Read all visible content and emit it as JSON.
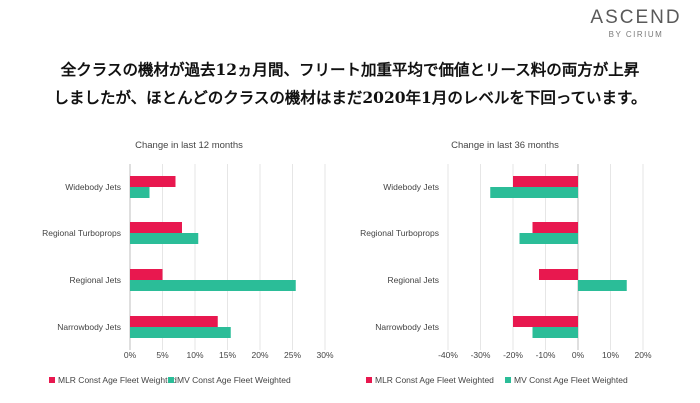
{
  "brand": {
    "name": "ASCEND",
    "sub": "BY CIRIUM"
  },
  "headline": {
    "line1": "全クラスの機材が過去12ヵ月間、フリート加重平均で価値とリース料の両方が上昇",
    "line2": "しましたが、ほとんどのクラスの機材はまだ2020年1月のレベルを下回っています。"
  },
  "colors": {
    "mlr": "#e8184f",
    "mv": "#2bbd98"
  },
  "chart_data": [
    {
      "type": "bar",
      "orientation": "horizontal",
      "title": "Change in last 12 months",
      "categories": [
        "Widebody Jets",
        "Regional Turboprops",
        "Regional Jets",
        "Narrowbody Jets"
      ],
      "series": [
        {
          "name": "MLR Const Age Fleet Weighted",
          "values": [
            7,
            8,
            5,
            13.5
          ]
        },
        {
          "name": "MV Const Age Fleet Weighted",
          "values": [
            3,
            10.5,
            25.5,
            15.5
          ]
        }
      ],
      "xlim": [
        0,
        30
      ],
      "xticks": [
        0,
        5,
        10,
        15,
        20,
        25,
        30
      ],
      "tick_format": "percent",
      "grid": true,
      "legend_position": "bottom"
    },
    {
      "type": "bar",
      "orientation": "horizontal",
      "title": "Change in last 36 months",
      "categories": [
        "Widebody Jets",
        "Regional Turboprops",
        "Regional Jets",
        "Narrowbody Jets"
      ],
      "series": [
        {
          "name": "MLR Const Age Fleet Weighted",
          "values": [
            -20,
            -14,
            -12,
            -20
          ]
        },
        {
          "name": "MV Const Age Fleet Weighted",
          "values": [
            -27,
            -18,
            15,
            -14
          ]
        }
      ],
      "xlim": [
        -40,
        20
      ],
      "xticks": [
        -40,
        -30,
        -20,
        -10,
        0,
        10,
        20
      ],
      "tick_format": "percent",
      "grid": true,
      "legend_position": "bottom"
    }
  ]
}
